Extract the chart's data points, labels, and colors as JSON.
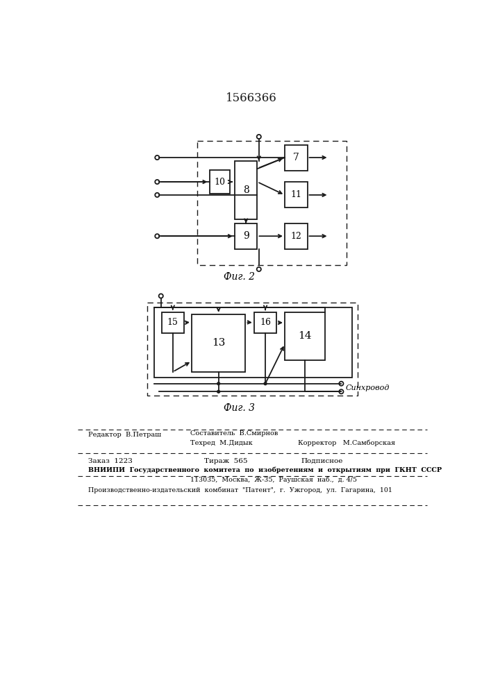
{
  "title": "1566366",
  "fig2_label": "Фиг. 2",
  "fig3_label": "Фиг. 3",
  "bg_color": "#ffffff",
  "line_color": "#1a1a1a",
  "footer": {
    "editor": "Редактор  В.Петраш",
    "composer": "Составитель  В.Смирнов",
    "techred": "Техред  М.Дидык",
    "corrector": "Корректор   М.Самборская",
    "order": "Заказ  1223",
    "tirazh": "Тираж  565",
    "podpisnoe": "Подписное",
    "vniipи": "ВНИИПИ  Государственного  комитета  по  изобретениям  и  открытиям  при  ГКНТ  СССР",
    "address": "113035,  Москва,  Ж-35,  Раушская  наб.,  д. 4/5",
    "kombinate": "Производственно-издательский  комбинат  \"Патент\",  г.  Ужгород,  ул.  Гагарина,  101"
  }
}
